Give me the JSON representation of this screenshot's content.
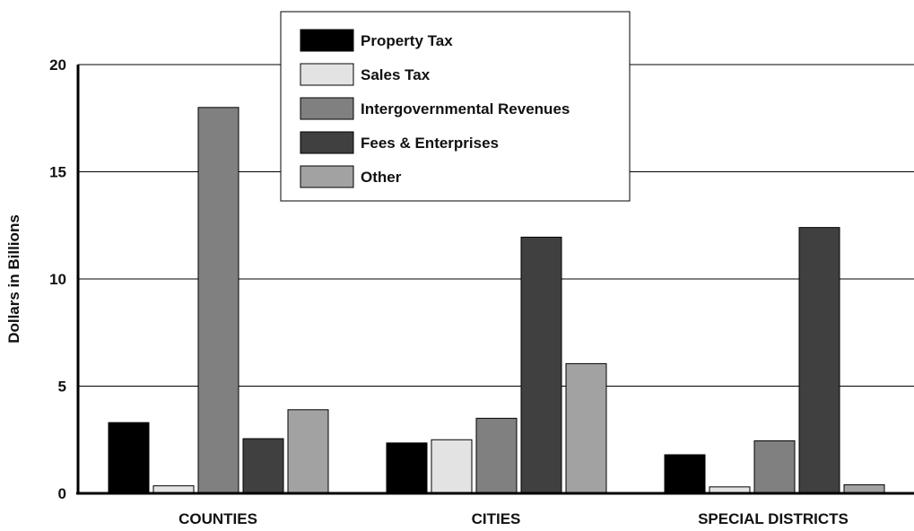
{
  "chart_data": {
    "type": "bar",
    "categories": [
      "COUNTIES",
      "CITIES",
      "SPECIAL DISTRICTS"
    ],
    "series": [
      {
        "name": "Property Tax",
        "values": [
          3.3,
          2.35,
          1.8
        ],
        "color": "#000000"
      },
      {
        "name": "Sales Tax",
        "values": [
          0.35,
          2.5,
          0.3
        ],
        "color": "#e3e3e3"
      },
      {
        "name": "Intergovernmental Revenues",
        "values": [
          18.0,
          3.5,
          2.45
        ],
        "color": "#808080"
      },
      {
        "name": "Fees & Enterprises",
        "values": [
          2.55,
          11.95,
          12.4
        ],
        "color": "#404040"
      },
      {
        "name": "Other",
        "values": [
          3.9,
          6.05,
          0.4
        ],
        "color": "#a2a2a2"
      }
    ],
    "ylabel": "Dollars in Billions",
    "yticks": [
      0,
      5,
      10,
      15,
      20
    ],
    "ylim": [
      0,
      20
    ],
    "grid": true,
    "legend_position": "top-center"
  }
}
